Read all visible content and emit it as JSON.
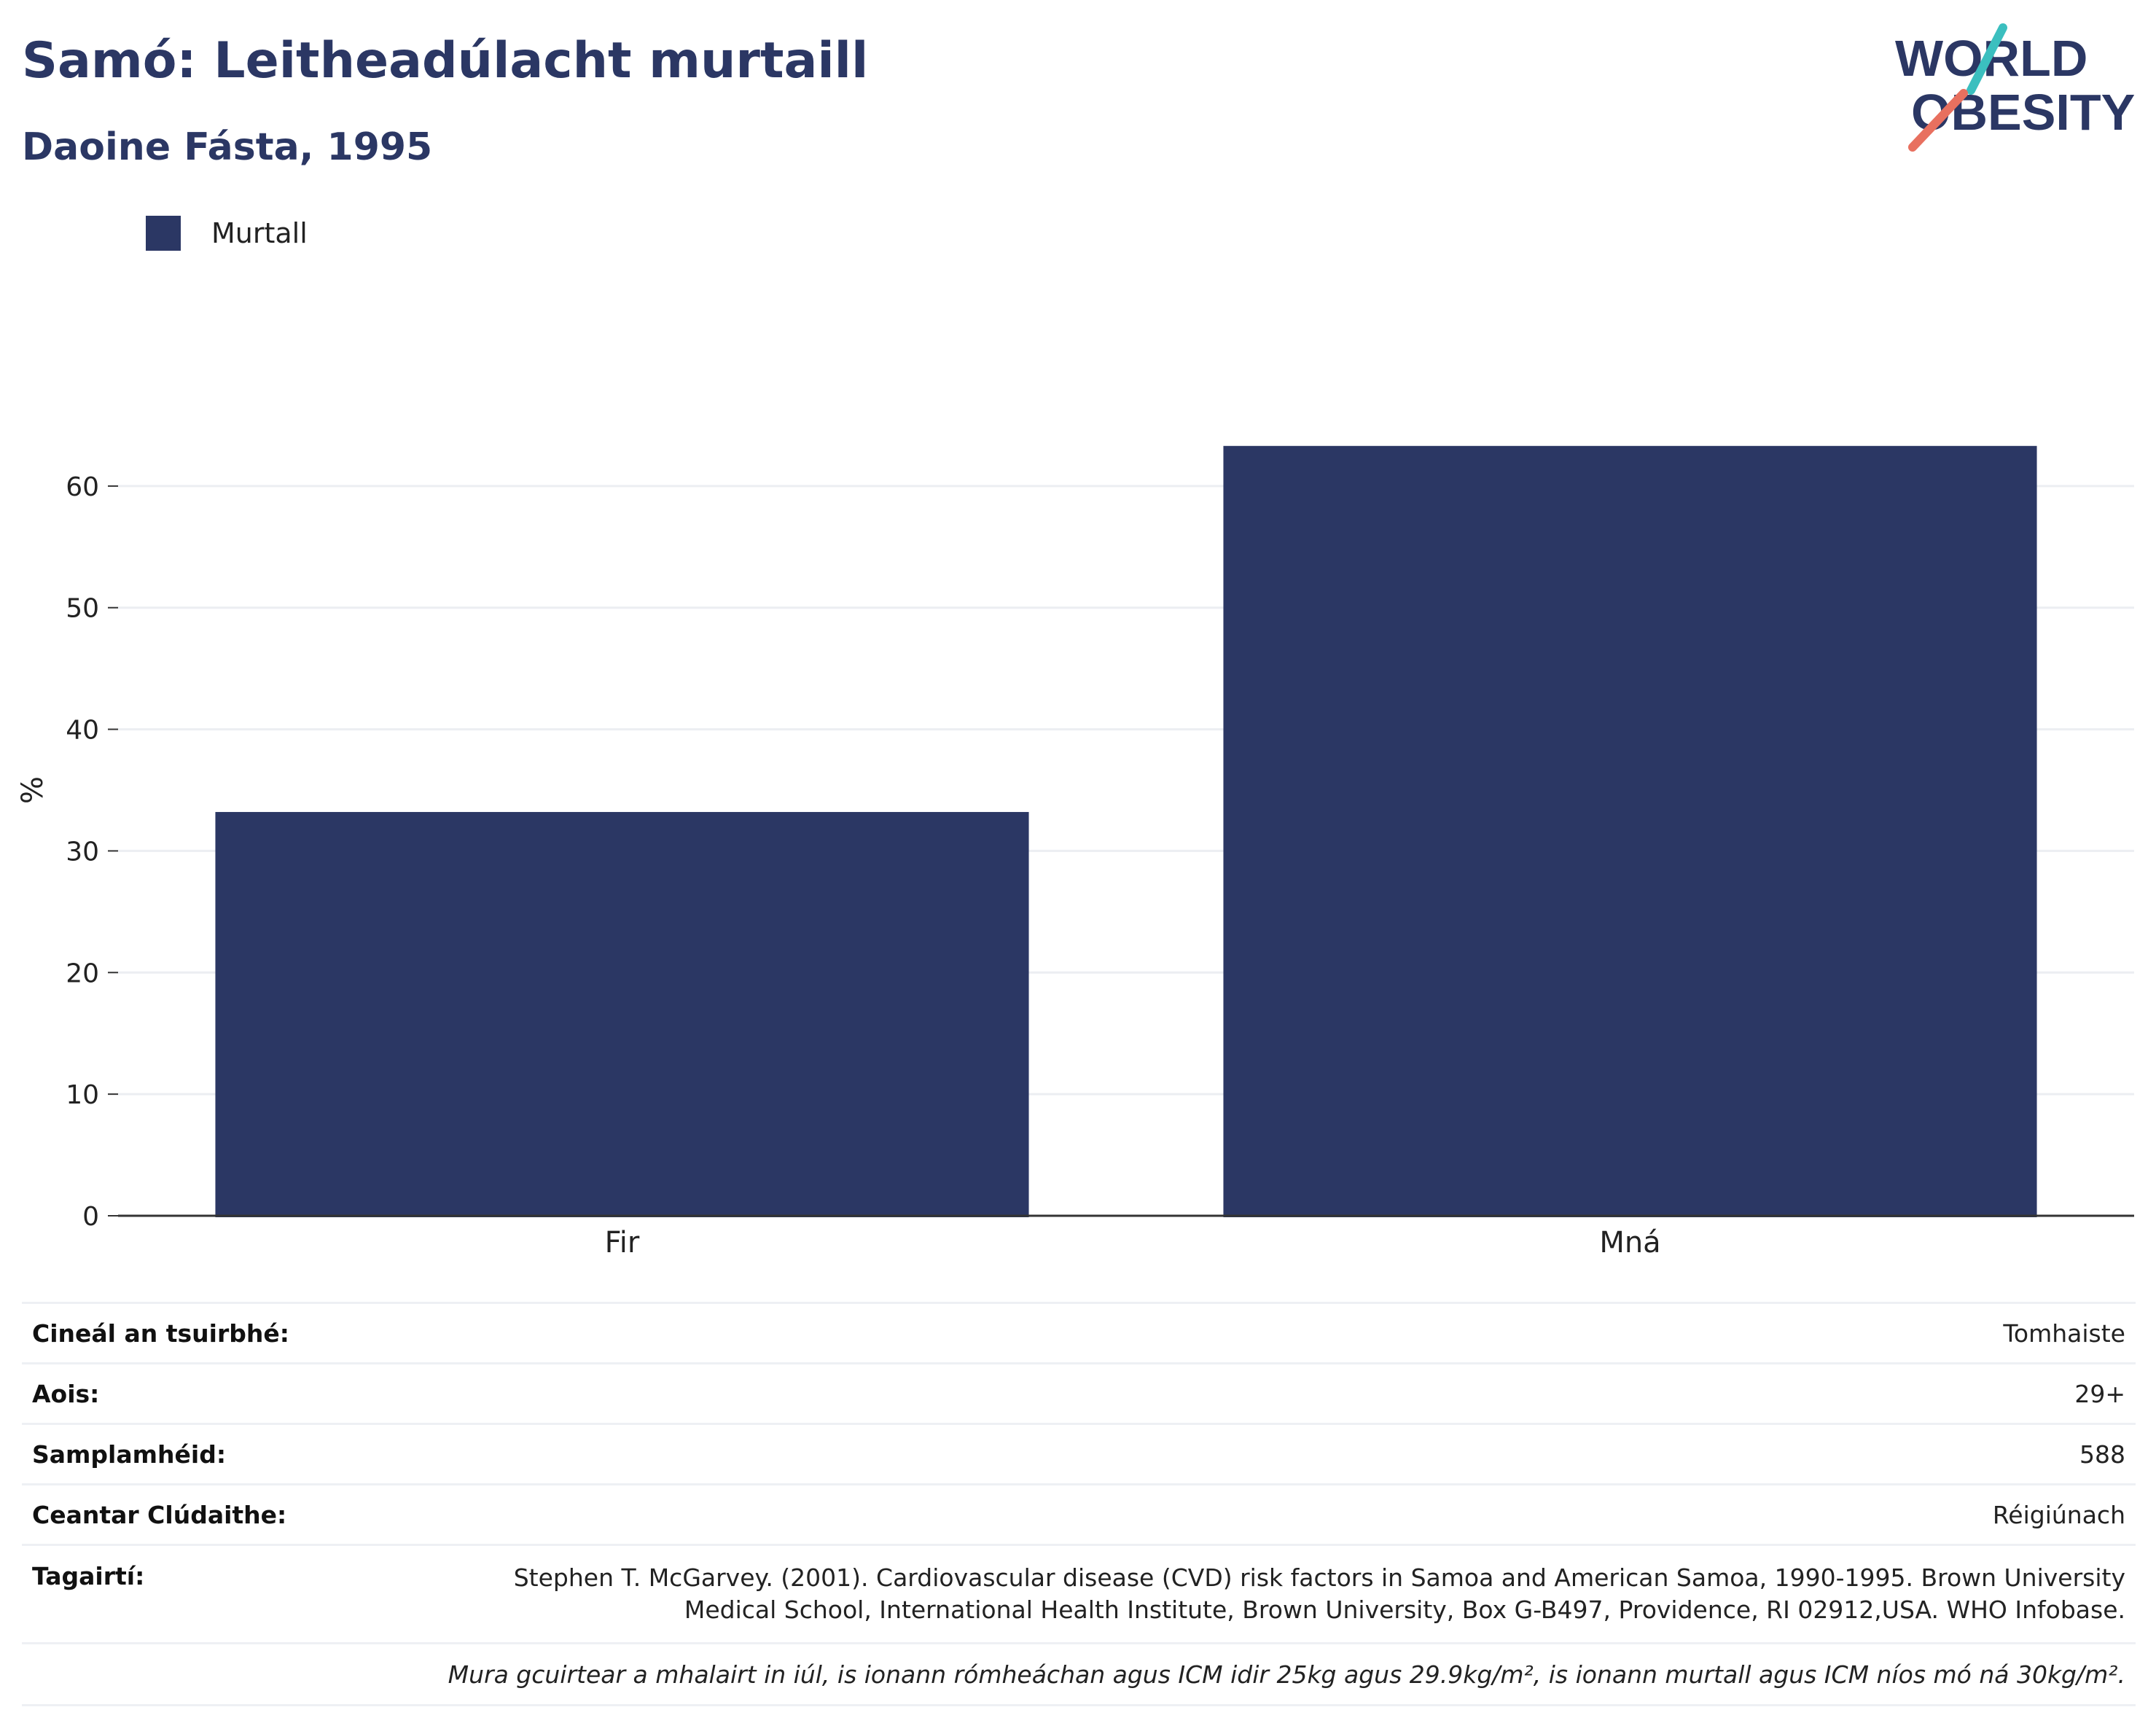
{
  "header": {
    "title": "Samó: Leitheadúlacht murtaill",
    "subtitle": "Daoine Fásta, 1995"
  },
  "logo": {
    "line1": "WORLD",
    "line2": "OBESITY",
    "colors": {
      "text": "#2b3764",
      "teal": "#3bbfbf",
      "coral": "#e8705f"
    }
  },
  "chart_data": {
    "type": "bar",
    "categories": [
      "Fir",
      "Mná"
    ],
    "series": [
      {
        "name": "Murtall",
        "values": [
          33.2,
          63.3
        ],
        "color": "#2b3764"
      }
    ],
    "ylabel": "%",
    "xlabel": "",
    "ylim": [
      0,
      70
    ],
    "yticks": [
      0,
      10,
      20,
      30,
      40,
      50,
      60
    ],
    "grid": true,
    "legend_position": "top-left"
  },
  "info": {
    "rows": [
      {
        "key": "Cineál an tsuirbhé:",
        "value": "Tomhaiste"
      },
      {
        "key": "Aois:",
        "value": "29+"
      },
      {
        "key": "Samplamhéid:",
        "value": "588"
      },
      {
        "key": "Ceantar Clúdaithe:",
        "value": "Réigiúnach"
      }
    ],
    "reference": {
      "key": "Tagairtí:",
      "value": "Stephen T. McGarvey. (2001). Cardiovascular disease (CVD) risk factors in Samoa and American Samoa, 1990-1995. Brown University Medical School, International Health Institute, Brown University, Box G-B497, Providence, RI 02912,USA. WHO Infobase."
    },
    "note": "Mura gcuirtear a mhalairt in iúl, is ionann rómheáchan agus ICM idir 25kg agus 29.9kg/m², is ionann murtall agus ICM níos mó ná 30kg/m²."
  }
}
